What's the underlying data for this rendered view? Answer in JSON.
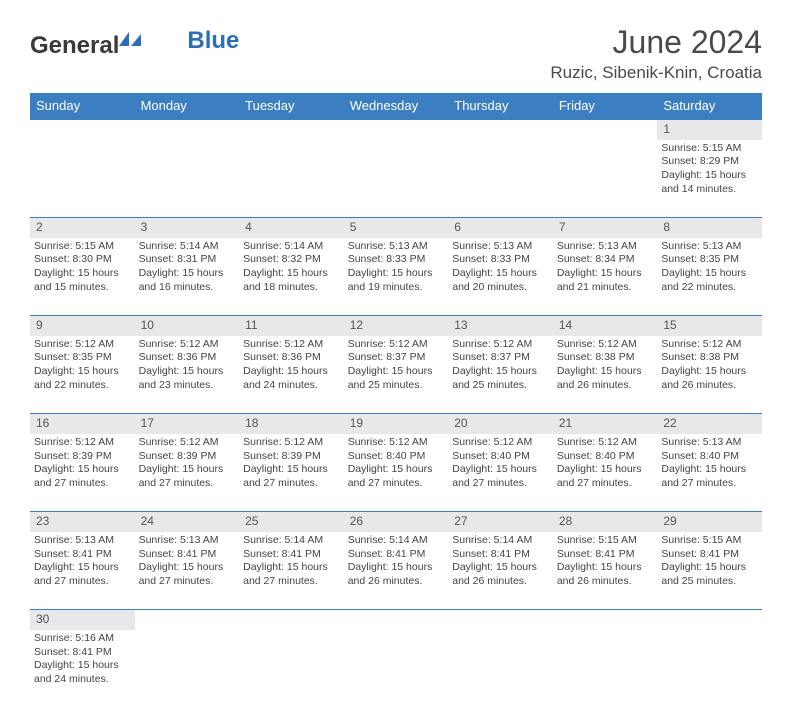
{
  "logo": {
    "general": "General",
    "blue": "Blue"
  },
  "title": "June 2024",
  "location": "Ruzic, Sibenik-Knin, Croatia",
  "colors": {
    "header_bg": "#3b7ec2",
    "daynum_bg": "#e8e8e8",
    "border": "#3b7ec2",
    "text": "#444444",
    "logo_gray": "#3a3a3a",
    "logo_blue": "#2d6fb5"
  },
  "weekdays": [
    "Sunday",
    "Monday",
    "Tuesday",
    "Wednesday",
    "Thursday",
    "Friday",
    "Saturday"
  ],
  "weeks": [
    {
      "nums": [
        "",
        "",
        "",
        "",
        "",
        "",
        "1"
      ],
      "cells": [
        null,
        null,
        null,
        null,
        null,
        null,
        {
          "sunrise": "Sunrise: 5:15 AM",
          "sunset": "Sunset: 8:29 PM",
          "day1": "Daylight: 15 hours",
          "day2": "and 14 minutes."
        }
      ]
    },
    {
      "nums": [
        "2",
        "3",
        "4",
        "5",
        "6",
        "7",
        "8"
      ],
      "cells": [
        {
          "sunrise": "Sunrise: 5:15 AM",
          "sunset": "Sunset: 8:30 PM",
          "day1": "Daylight: 15 hours",
          "day2": "and 15 minutes."
        },
        {
          "sunrise": "Sunrise: 5:14 AM",
          "sunset": "Sunset: 8:31 PM",
          "day1": "Daylight: 15 hours",
          "day2": "and 16 minutes."
        },
        {
          "sunrise": "Sunrise: 5:14 AM",
          "sunset": "Sunset: 8:32 PM",
          "day1": "Daylight: 15 hours",
          "day2": "and 18 minutes."
        },
        {
          "sunrise": "Sunrise: 5:13 AM",
          "sunset": "Sunset: 8:33 PM",
          "day1": "Daylight: 15 hours",
          "day2": "and 19 minutes."
        },
        {
          "sunrise": "Sunrise: 5:13 AM",
          "sunset": "Sunset: 8:33 PM",
          "day1": "Daylight: 15 hours",
          "day2": "and 20 minutes."
        },
        {
          "sunrise": "Sunrise: 5:13 AM",
          "sunset": "Sunset: 8:34 PM",
          "day1": "Daylight: 15 hours",
          "day2": "and 21 minutes."
        },
        {
          "sunrise": "Sunrise: 5:13 AM",
          "sunset": "Sunset: 8:35 PM",
          "day1": "Daylight: 15 hours",
          "day2": "and 22 minutes."
        }
      ]
    },
    {
      "nums": [
        "9",
        "10",
        "11",
        "12",
        "13",
        "14",
        "15"
      ],
      "cells": [
        {
          "sunrise": "Sunrise: 5:12 AM",
          "sunset": "Sunset: 8:35 PM",
          "day1": "Daylight: 15 hours",
          "day2": "and 22 minutes."
        },
        {
          "sunrise": "Sunrise: 5:12 AM",
          "sunset": "Sunset: 8:36 PM",
          "day1": "Daylight: 15 hours",
          "day2": "and 23 minutes."
        },
        {
          "sunrise": "Sunrise: 5:12 AM",
          "sunset": "Sunset: 8:36 PM",
          "day1": "Daylight: 15 hours",
          "day2": "and 24 minutes."
        },
        {
          "sunrise": "Sunrise: 5:12 AM",
          "sunset": "Sunset: 8:37 PM",
          "day1": "Daylight: 15 hours",
          "day2": "and 25 minutes."
        },
        {
          "sunrise": "Sunrise: 5:12 AM",
          "sunset": "Sunset: 8:37 PM",
          "day1": "Daylight: 15 hours",
          "day2": "and 25 minutes."
        },
        {
          "sunrise": "Sunrise: 5:12 AM",
          "sunset": "Sunset: 8:38 PM",
          "day1": "Daylight: 15 hours",
          "day2": "and 26 minutes."
        },
        {
          "sunrise": "Sunrise: 5:12 AM",
          "sunset": "Sunset: 8:38 PM",
          "day1": "Daylight: 15 hours",
          "day2": "and 26 minutes."
        }
      ]
    },
    {
      "nums": [
        "16",
        "17",
        "18",
        "19",
        "20",
        "21",
        "22"
      ],
      "cells": [
        {
          "sunrise": "Sunrise: 5:12 AM",
          "sunset": "Sunset: 8:39 PM",
          "day1": "Daylight: 15 hours",
          "day2": "and 27 minutes."
        },
        {
          "sunrise": "Sunrise: 5:12 AM",
          "sunset": "Sunset: 8:39 PM",
          "day1": "Daylight: 15 hours",
          "day2": "and 27 minutes."
        },
        {
          "sunrise": "Sunrise: 5:12 AM",
          "sunset": "Sunset: 8:39 PM",
          "day1": "Daylight: 15 hours",
          "day2": "and 27 minutes."
        },
        {
          "sunrise": "Sunrise: 5:12 AM",
          "sunset": "Sunset: 8:40 PM",
          "day1": "Daylight: 15 hours",
          "day2": "and 27 minutes."
        },
        {
          "sunrise": "Sunrise: 5:12 AM",
          "sunset": "Sunset: 8:40 PM",
          "day1": "Daylight: 15 hours",
          "day2": "and 27 minutes."
        },
        {
          "sunrise": "Sunrise: 5:12 AM",
          "sunset": "Sunset: 8:40 PM",
          "day1": "Daylight: 15 hours",
          "day2": "and 27 minutes."
        },
        {
          "sunrise": "Sunrise: 5:13 AM",
          "sunset": "Sunset: 8:40 PM",
          "day1": "Daylight: 15 hours",
          "day2": "and 27 minutes."
        }
      ]
    },
    {
      "nums": [
        "23",
        "24",
        "25",
        "26",
        "27",
        "28",
        "29"
      ],
      "cells": [
        {
          "sunrise": "Sunrise: 5:13 AM",
          "sunset": "Sunset: 8:41 PM",
          "day1": "Daylight: 15 hours",
          "day2": "and 27 minutes."
        },
        {
          "sunrise": "Sunrise: 5:13 AM",
          "sunset": "Sunset: 8:41 PM",
          "day1": "Daylight: 15 hours",
          "day2": "and 27 minutes."
        },
        {
          "sunrise": "Sunrise: 5:14 AM",
          "sunset": "Sunset: 8:41 PM",
          "day1": "Daylight: 15 hours",
          "day2": "and 27 minutes."
        },
        {
          "sunrise": "Sunrise: 5:14 AM",
          "sunset": "Sunset: 8:41 PM",
          "day1": "Daylight: 15 hours",
          "day2": "and 26 minutes."
        },
        {
          "sunrise": "Sunrise: 5:14 AM",
          "sunset": "Sunset: 8:41 PM",
          "day1": "Daylight: 15 hours",
          "day2": "and 26 minutes."
        },
        {
          "sunrise": "Sunrise: 5:15 AM",
          "sunset": "Sunset: 8:41 PM",
          "day1": "Daylight: 15 hours",
          "day2": "and 26 minutes."
        },
        {
          "sunrise": "Sunrise: 5:15 AM",
          "sunset": "Sunset: 8:41 PM",
          "day1": "Daylight: 15 hours",
          "day2": "and 25 minutes."
        }
      ]
    },
    {
      "nums": [
        "30",
        "",
        "",
        "",
        "",
        "",
        ""
      ],
      "cells": [
        {
          "sunrise": "Sunrise: 5:16 AM",
          "sunset": "Sunset: 8:41 PM",
          "day1": "Daylight: 15 hours",
          "day2": "and 24 minutes."
        },
        null,
        null,
        null,
        null,
        null,
        null
      ]
    }
  ]
}
